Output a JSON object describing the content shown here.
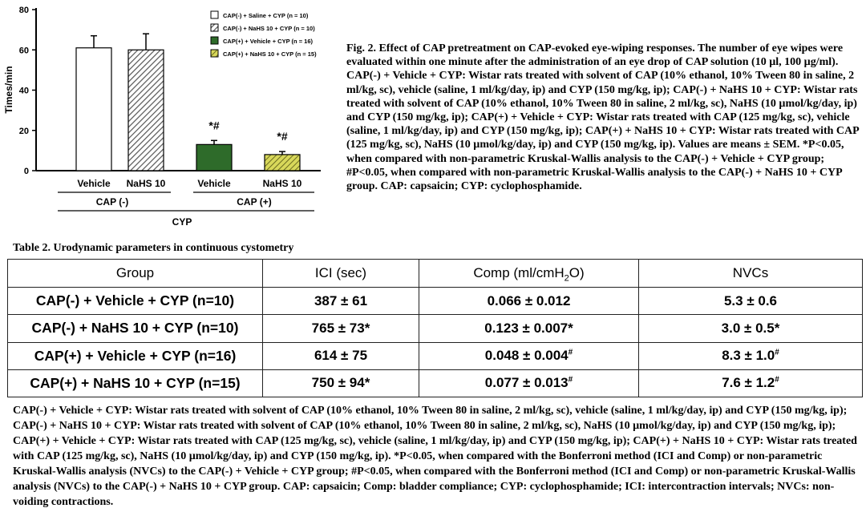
{
  "chart_data": {
    "type": "bar",
    "ylabel": "Times/min",
    "ylim": [
      0,
      80
    ],
    "yticks": [
      "0",
      "20",
      "40",
      "60",
      "80"
    ],
    "categories": [
      "Vehicle",
      "NaHS 10",
      "Vehicle",
      "NaHS 10"
    ],
    "groups": [
      {
        "label": "CAP (-)"
      },
      {
        "label": "CAP (+)"
      }
    ],
    "xlabel": "CYP",
    "series": [
      {
        "name": "CAP(-) + Saline + CYP (n = 10)",
        "value": 61,
        "err": 6,
        "fill": "white",
        "annot": ""
      },
      {
        "name": "CAP(-) + NaHS 10 + CYP (n = 10)",
        "value": 60,
        "err": 8,
        "fill": "hatch-gray",
        "annot": ""
      },
      {
        "name": "CAP(+) + Vehicle + CYP (n = 16)",
        "value": 13,
        "err": 2,
        "fill": "#2e6b2a",
        "annot": "*#"
      },
      {
        "name": "CAP(+) + NaHS 10 + CYP (n = 15)",
        "value": 8,
        "err": 1.5,
        "fill": "hatch-yellow",
        "annot": "*#"
      }
    ]
  },
  "caption": "Fig. 2. Effect of CAP pretreatment on CAP-evoked eye-wiping responses.  The number of eye wipes were evaluated within one minute after the administration of an eye drop of CAP solution (10 µl, 100 µg/ml).  CAP(-) + Vehicle + CYP: Wistar rats treated with solvent of CAP (10% ethanol, 10% Tween 80 in saline, 2 ml/kg, sc), vehicle (saline, 1 ml/kg/day, ip) and CYP (150 mg/kg, ip); CAP(-) + NaHS 10 + CYP: Wistar rats treated with solvent of CAP (10% ethanol, 10% Tween 80 in saline, 2 ml/kg, sc), NaHS (10 µmol/kg/day, ip) and CYP (150 mg/kg, ip); CAP(+) + Vehicle + CYP: Wistar rats treated with CAP (125 mg/kg, sc), vehicle (saline, 1 ml/kg/day, ip) and CYP (150 mg/kg, ip); CAP(+) + NaHS 10 + CYP: Wistar rats treated with CAP (125 mg/kg, sc), NaHS (10 µmol/kg/day, ip) and CYP (150 mg/kg, ip).  Values are means ± SEM.  *P<0.05, when compared with non-parametric Kruskal-Wallis analysis to the CAP(-) + Vehicle + CYP group; #P<0.05, when compared with non-parametric Kruskal-Wallis analysis to the CAP(-) + NaHS 10 + CYP group.  CAP: capsaicin; CYP: cyclophosphamide.",
  "table_title": "Table 2. Urodynamic parameters in continuous cystometry",
  "table": {
    "headers": {
      "group": "Group",
      "ici": "ICI (sec)",
      "comp_main": "Comp (ml/cmH",
      "comp_sub": "2",
      "comp_end": "O)",
      "nvcs": "NVCs"
    },
    "rows": [
      {
        "group": "CAP(-) + Vehicle + CYP (n=10)",
        "ici": "387 ± 61",
        "ici_mark": "",
        "comp": "0.066 ± 0.012",
        "comp_mark": "",
        "nvcs": "5.3 ± 0.6",
        "nvcs_mark": ""
      },
      {
        "group": "CAP(-) + NaHS 10 + CYP (n=10)",
        "ici": "765 ± 73",
        "ici_mark": "*",
        "comp": "0.123 ± 0.007",
        "comp_mark": "*",
        "nvcs": "3.0 ± 0.5",
        "nvcs_mark": "*"
      },
      {
        "group": "CAP(+) + Vehicle + CYP (n=16)",
        "ici": "614 ± 75",
        "ici_mark": "",
        "comp": "0.048 ± 0.004",
        "comp_mark": "#",
        "nvcs": "8.3 ± 1.0",
        "nvcs_mark": "#"
      },
      {
        "group": "CAP(+) + NaHS 10 + CYP (n=15)",
        "ici": "750 ± 94",
        "ici_mark": "*",
        "comp": "0.077 ± 0.013",
        "comp_mark": "#",
        "nvcs": "7.6 ± 1.2",
        "nvcs_mark": "#"
      }
    ]
  },
  "footnote": "CAP(-) + Vehicle + CYP: Wistar rats treated with solvent of CAP (10% ethanol, 10% Tween 80 in saline, 2 ml/kg, sc), vehicle (saline, 1 ml/kg/day, ip) and CYP (150 mg/kg, ip); CAP(-) + NaHS 10 + CYP: Wistar rats treated with solvent of CAP (10% ethanol, 10% Tween 80 in saline, 2 ml/kg, sc), NaHS (10 µmol/kg/day, ip) and CYP (150 mg/kg, ip); CAP(+) + Vehicle + CYP: Wistar rats treated with CAP (125 mg/kg, sc), vehicle (saline, 1 ml/kg/day, ip) and CYP (150 mg/kg, ip); CAP(+) + NaHS 10 + CYP: Wistar rats treated with CAP (125 mg/kg, sc), NaHS (10 µmol/kg/day, ip) and CYP (150 mg/kg, ip).  *P<0.05, when compared with the Bonferroni method (ICI and Comp) or non-parametric Kruskal-Wallis analysis (NVCs) to the CAP(-) + Vehicle + CYP group; #P<0.05, when compared with the Bonferroni method (ICI and Comp) or non-parametric Kruskal-Wallis analysis (NVCs) to the CAP(-) + NaHS 10 + CYP group.  CAP: capsaicin; Comp: bladder compliance; CYP: cyclophosphamide; ICI: intercontraction intervals; NVCs: non-voiding contractions."
}
